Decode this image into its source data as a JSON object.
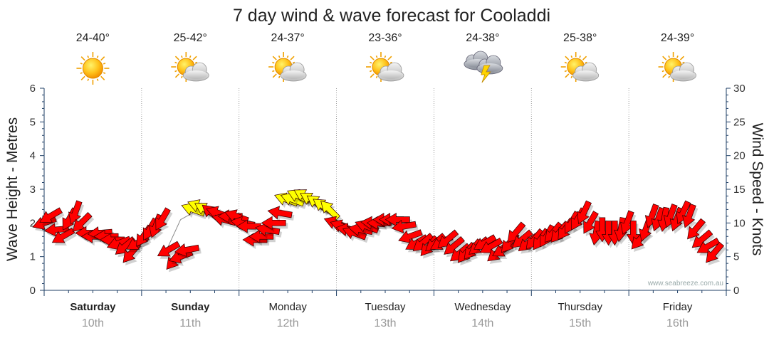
{
  "chart_data": {
    "type": "scatter",
    "title": "7 day wind & wave forecast for Cooladdi",
    "ylabel_left": "Wave Height - Metres",
    "ylabel_right": "Wind Speed - Knots",
    "y_left_range": [
      0,
      6
    ],
    "y_right_range": [
      0,
      30
    ],
    "y_left_ticks": [
      "0",
      "1",
      "2",
      "3",
      "4",
      "5",
      "6"
    ],
    "y_right_ticks": [
      "0",
      "5",
      "10",
      "15",
      "20",
      "25",
      "30"
    ],
    "watermark": "www.seabreeze.com.au",
    "days": [
      {
        "day": "Saturday",
        "date": "10th",
        "temp": "24-40°",
        "icon": "sun-icon",
        "bold": true
      },
      {
        "day": "Sunday",
        "date": "11th",
        "temp": "25-42°",
        "icon": "sun-cloud-icon",
        "bold": true
      },
      {
        "day": "Monday",
        "date": "12th",
        "temp": "24-37°",
        "icon": "sun-cloud-icon",
        "bold": false
      },
      {
        "day": "Tuesday",
        "date": "13th",
        "temp": "23-36°",
        "icon": "sun-cloud-icon",
        "bold": false
      },
      {
        "day": "Wednesday",
        "date": "14th",
        "temp": "24-38°",
        "icon": "thunderstorm-icon",
        "bold": false
      },
      {
        "day": "Thursday",
        "date": "15th",
        "temp": "25-38°",
        "icon": "sun-cloud-icon",
        "bold": false
      },
      {
        "day": "Friday",
        "date": "16th",
        "temp": "24-39°",
        "icon": "sun-cloud-icon",
        "bold": false
      }
    ],
    "wind_series": {
      "name": "Wind Speed (knots)",
      "points": [
        {
          "t": 0.0,
          "v": 10.0,
          "dir": 160
        },
        {
          "t": 0.1,
          "v": 11.0,
          "dir": 150
        },
        {
          "t": 0.2,
          "v": 9.0,
          "dir": 175
        },
        {
          "t": 0.3,
          "v": 8.0,
          "dir": 150
        },
        {
          "t": 0.4,
          "v": 10.5,
          "dir": 120
        },
        {
          "t": 0.5,
          "v": 11.5,
          "dir": 110
        },
        {
          "t": 0.6,
          "v": 10.0,
          "dir": 135
        },
        {
          "t": 0.7,
          "v": 8.5,
          "dir": 180
        },
        {
          "t": 0.8,
          "v": 8.0,
          "dir": 180
        },
        {
          "t": 0.9,
          "v": 8.5,
          "dir": 175
        },
        {
          "t": 1.0,
          "v": 8.0,
          "dir": 180
        },
        {
          "t": 1.1,
          "v": 7.5,
          "dir": 180
        },
        {
          "t": 1.2,
          "v": 7.0,
          "dir": 160
        },
        {
          "t": 1.3,
          "v": 6.5,
          "dir": 140
        },
        {
          "t": 1.4,
          "v": 5.5,
          "dir": 130
        },
        {
          "t": 1.5,
          "v": 7.0,
          "dir": 150
        },
        {
          "t": 1.6,
          "v": 8.0,
          "dir": 125
        },
        {
          "t": 1.7,
          "v": 9.0,
          "dir": 120
        },
        {
          "t": 1.8,
          "v": 9.5,
          "dir": 110
        },
        {
          "t": 1.9,
          "v": 10.5,
          "dir": 120
        },
        {
          "t": 2.0,
          "v": 6.0,
          "dir": 150
        },
        {
          "t": 2.1,
          "v": 4.5,
          "dir": 130
        },
        {
          "t": 2.2,
          "v": 5.0,
          "dir": 160
        },
        {
          "t": 2.3,
          "v": 6.0,
          "dir": 170
        },
        {
          "t": 2.4,
          "v": 12.0,
          "dir": 200
        },
        {
          "t": 2.5,
          "v": 12.5,
          "dir": 200
        },
        {
          "t": 2.6,
          "v": 12.0,
          "dir": 210
        },
        {
          "t": 2.7,
          "v": 11.5,
          "dir": 220
        },
        {
          "t": 2.8,
          "v": 11.5,
          "dir": 200
        },
        {
          "t": 2.9,
          "v": 10.5,
          "dir": 195
        },
        {
          "t": 3.0,
          "v": 11.0,
          "dir": 180
        },
        {
          "t": 3.1,
          "v": 11.0,
          "dir": 200
        },
        {
          "t": 3.2,
          "v": 10.0,
          "dir": 190
        },
        {
          "t": 3.3,
          "v": 9.5,
          "dir": 180
        },
        {
          "t": 3.4,
          "v": 7.5,
          "dir": 180
        },
        {
          "t": 3.5,
          "v": 8.0,
          "dir": 180
        },
        {
          "t": 3.6,
          "v": 9.0,
          "dir": 190
        },
        {
          "t": 3.7,
          "v": 10.0,
          "dir": 180
        },
        {
          "t": 3.8,
          "v": 11.5,
          "dir": 190
        },
        {
          "t": 3.9,
          "v": 13.5,
          "dir": 200
        },
        {
          "t": 4.0,
          "v": 13.5,
          "dir": 200
        },
        {
          "t": 4.1,
          "v": 14.0,
          "dir": 205
        },
        {
          "t": 4.2,
          "v": 14.0,
          "dir": 210
        },
        {
          "t": 4.3,
          "v": 13.5,
          "dir": 210
        },
        {
          "t": 4.4,
          "v": 13.0,
          "dir": 215
        },
        {
          "t": 4.5,
          "v": 12.5,
          "dir": 215
        },
        {
          "t": 4.6,
          "v": 12.0,
          "dir": 225
        },
        {
          "t": 4.7,
          "v": 10.0,
          "dir": 200
        },
        {
          "t": 4.8,
          "v": 9.5,
          "dir": 200
        },
        {
          "t": 4.9,
          "v": 9.0,
          "dir": 190
        },
        {
          "t": 5.0,
          "v": 8.5,
          "dir": 200
        },
        {
          "t": 5.1,
          "v": 9.0,
          "dir": 190
        },
        {
          "t": 5.2,
          "v": 9.5,
          "dir": 200
        },
        {
          "t": 5.3,
          "v": 10.0,
          "dir": 185
        },
        {
          "t": 5.4,
          "v": 10.0,
          "dir": 180
        },
        {
          "t": 5.5,
          "v": 10.5,
          "dir": 180
        },
        {
          "t": 5.6,
          "v": 10.5,
          "dir": 180
        },
        {
          "t": 5.7,
          "v": 10.5,
          "dir": 180
        },
        {
          "t": 5.8,
          "v": 9.5,
          "dir": 170
        },
        {
          "t": 5.9,
          "v": 8.0,
          "dir": 160
        },
        {
          "t": 6.0,
          "v": 7.0,
          "dir": 150
        },
        {
          "t": 6.1,
          "v": 7.0,
          "dir": 140
        },
        {
          "t": 6.2,
          "v": 6.5,
          "dir": 130
        },
        {
          "t": 6.3,
          "v": 7.0,
          "dir": 140
        },
        {
          "t": 6.4,
          "v": 7.0,
          "dir": 150
        },
        {
          "t": 6.5,
          "v": 7.5,
          "dir": 140
        },
        {
          "t": 6.6,
          "v": 6.5,
          "dir": 140
        },
        {
          "t": 6.7,
          "v": 5.5,
          "dir": 140
        },
        {
          "t": 6.8,
          "v": 5.5,
          "dir": 130
        },
        {
          "t": 6.9,
          "v": 6.0,
          "dir": 130
        },
        {
          "t": 7.0,
          "v": 6.5,
          "dir": 140
        },
        {
          "t": 7.1,
          "v": 7.0,
          "dir": 150
        },
        {
          "t": 7.2,
          "v": 6.5,
          "dir": 150
        },
        {
          "t": 7.3,
          "v": 5.5,
          "dir": 140
        },
        {
          "t": 7.4,
          "v": 6.0,
          "dir": 150
        },
        {
          "t": 7.5,
          "v": 7.0,
          "dir": 130
        },
        {
          "t": 7.6,
          "v": 8.5,
          "dir": 130
        },
        {
          "t": 7.7,
          "v": 7.5,
          "dir": 140
        },
        {
          "t": 7.8,
          "v": 7.0,
          "dir": 140
        },
        {
          "t": 7.9,
          "v": 7.5,
          "dir": 130
        },
        {
          "t": 8.0,
          "v": 7.5,
          "dir": 125
        },
        {
          "t": 8.1,
          "v": 8.0,
          "dir": 120
        },
        {
          "t": 8.2,
          "v": 8.5,
          "dir": 130
        },
        {
          "t": 8.3,
          "v": 8.5,
          "dir": 130
        },
        {
          "t": 8.4,
          "v": 9.0,
          "dir": 125
        },
        {
          "t": 8.5,
          "v": 10.0,
          "dir": 120
        },
        {
          "t": 8.6,
          "v": 10.5,
          "dir": 120
        },
        {
          "t": 8.7,
          "v": 11.5,
          "dir": 115
        },
        {
          "t": 8.8,
          "v": 10.0,
          "dir": 120
        },
        {
          "t": 8.9,
          "v": 8.5,
          "dir": 100
        },
        {
          "t": 9.0,
          "v": 9.0,
          "dir": 90
        },
        {
          "t": 9.1,
          "v": 8.5,
          "dir": 90
        },
        {
          "t": 9.2,
          "v": 8.5,
          "dir": 90
        },
        {
          "t": 9.3,
          "v": 9.0,
          "dir": 100
        },
        {
          "t": 9.4,
          "v": 10.0,
          "dir": 110
        },
        {
          "t": 9.5,
          "v": 8.5,
          "dir": 90
        },
        {
          "t": 9.6,
          "v": 7.5,
          "dir": 130
        },
        {
          "t": 9.7,
          "v": 9.0,
          "dir": 110
        },
        {
          "t": 9.8,
          "v": 11.0,
          "dir": 110
        },
        {
          "t": 9.9,
          "v": 10.5,
          "dir": 110
        },
        {
          "t": 10.0,
          "v": 10.5,
          "dir": 100
        },
        {
          "t": 10.1,
          "v": 11.0,
          "dir": 110
        },
        {
          "t": 10.2,
          "v": 10.5,
          "dir": 110
        },
        {
          "t": 10.3,
          "v": 11.5,
          "dir": 115
        },
        {
          "t": 10.4,
          "v": 11.0,
          "dir": 110
        },
        {
          "t": 10.5,
          "v": 9.0,
          "dir": 130
        },
        {
          "t": 10.6,
          "v": 7.5,
          "dir": 140
        },
        {
          "t": 10.7,
          "v": 6.5,
          "dir": 150
        },
        {
          "t": 10.8,
          "v": 5.5,
          "dir": 130
        }
      ]
    },
    "wave_series": {
      "name": "Wave Height (m)",
      "segment_color": "#888888",
      "points": [
        {
          "t": 2.0,
          "v": 1.3
        },
        {
          "t": 2.1,
          "v": 1.7
        },
        {
          "t": 2.2,
          "v": 2.1
        },
        {
          "t": 2.3,
          "v": 2.2
        },
        {
          "t": 2.4,
          "v": 2.3
        }
      ]
    }
  },
  "colors": {
    "wind_low": "#ff0000",
    "wind_high": "#ffff00",
    "arrow_stroke": "#330000",
    "grid": "#888888",
    "axis": "#1f3f66"
  }
}
